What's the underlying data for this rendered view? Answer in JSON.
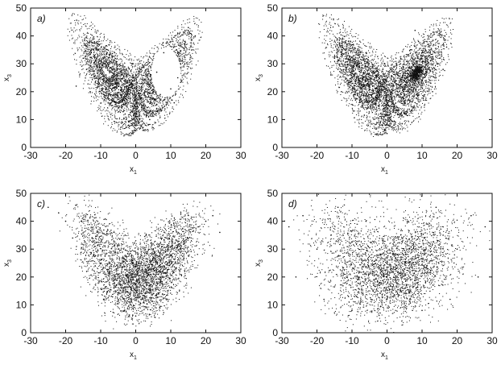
{
  "chart_data": [
    {
      "type": "scatter",
      "panel_label": "a)",
      "xlabel": "x",
      "xlabel_sub": "1",
      "ylabel": "x",
      "ylabel_sub": "3",
      "xlim": [
        -30,
        30
      ],
      "ylim": [
        0,
        50
      ],
      "xticks": [
        -30,
        -20,
        -10,
        0,
        10,
        20,
        30
      ],
      "yticks": [
        0,
        10,
        20,
        30,
        40,
        50
      ],
      "grid": false,
      "description": "Lorenz attractor, two wings; right wing has an open hole",
      "series": [
        {
          "x": [
            -12,
            -14,
            -10,
            -8,
            -6,
            -13,
            -9,
            -11,
            -5,
            -3,
            -2,
            0,
            2,
            4,
            6,
            8,
            10,
            12,
            14,
            16,
            10,
            8,
            6,
            12,
            14,
            15,
            9,
            -15,
            -16,
            -17,
            -4,
            -7,
            -1,
            1,
            3,
            5,
            7,
            11,
            13,
            17
          ],
          "y": [
            35,
            28,
            25,
            30,
            34,
            20,
            17,
            38,
            22,
            12,
            8,
            6,
            7,
            10,
            14,
            17,
            21,
            25,
            30,
            35,
            38,
            34,
            27,
            41,
            37,
            43,
            18,
            32,
            26,
            22,
            27,
            16,
            10,
            9,
            11,
            15,
            19,
            16,
            24,
            40
          ]
        }
      ]
    },
    {
      "type": "scatter",
      "panel_label": "b)",
      "xlabel": "x",
      "xlabel_sub": "1",
      "ylabel": "x",
      "ylabel_sub": "3",
      "xlim": [
        -30,
        30
      ],
      "ylim": [
        0,
        50
      ],
      "xticks": [
        -30,
        -20,
        -10,
        0,
        10,
        20,
        30
      ],
      "yticks": [
        0,
        10,
        20,
        30,
        40,
        50
      ],
      "grid": false,
      "description": "Lorenz attractor, symmetric two-wing butterfly",
      "series": [
        {
          "x": [
            -12,
            -14,
            -10,
            -8,
            -6,
            -13,
            -9,
            -11,
            -5,
            -3,
            -2,
            0,
            2,
            4,
            6,
            8,
            10,
            12,
            14,
            9,
            13,
            11,
            7,
            15,
            -15,
            -16,
            -4,
            -7,
            -1,
            1,
            3,
            5,
            16,
            17,
            8,
            10
          ],
          "y": [
            35,
            28,
            25,
            30,
            34,
            20,
            17,
            38,
            22,
            12,
            8,
            5,
            8,
            12,
            22,
            30,
            34,
            28,
            25,
            38,
            20,
            17,
            26,
            32,
            32,
            26,
            27,
            16,
            10,
            10,
            12,
            16,
            28,
            36,
            42,
            24
          ]
        }
      ]
    },
    {
      "type": "scatter",
      "panel_label": "c)",
      "xlabel": "x",
      "xlabel_sub": "1",
      "ylabel": "x",
      "ylabel_sub": "3",
      "xlim": [
        -30,
        30
      ],
      "ylim": [
        0,
        50
      ],
      "xticks": [
        -30,
        -20,
        -10,
        0,
        10,
        20,
        30
      ],
      "yticks": [
        0,
        10,
        20,
        30,
        40,
        50
      ],
      "grid": false,
      "description": "Noisy attractor, broad V-shaped cloud",
      "series": [
        {
          "x": [
            -20,
            -18,
            -15,
            -12,
            -10,
            -8,
            -6,
            -4,
            -2,
            0,
            2,
            4,
            6,
            8,
            10,
            12,
            15,
            18,
            20,
            22,
            -22,
            -25,
            -5,
            5,
            0,
            -1,
            1,
            -3,
            3,
            9,
            -9,
            14,
            -14,
            24
          ],
          "y": [
            40,
            34,
            30,
            28,
            25,
            22,
            20,
            16,
            12,
            6,
            12,
            17,
            21,
            24,
            28,
            31,
            34,
            38,
            40,
            42,
            43,
            45,
            30,
            30,
            20,
            25,
            15,
            35,
            35,
            12,
            12,
            22,
            22,
            36
          ]
        }
      ]
    },
    {
      "type": "scatter",
      "panel_label": "d)",
      "xlabel": "x",
      "xlabel_sub": "1",
      "ylabel": "x",
      "ylabel_sub": "3",
      "xlim": [
        -30,
        30
      ],
      "ylim": [
        0,
        50
      ],
      "xticks": [
        -30,
        -20,
        -10,
        0,
        10,
        20,
        30
      ],
      "yticks": [
        0,
        10,
        20,
        30,
        40,
        50
      ],
      "grid": false,
      "description": "Heavily noisy attractor, diffuse cloud",
      "series": [
        {
          "x": [
            -28,
            -24,
            -20,
            -16,
            -12,
            -8,
            -4,
            0,
            4,
            8,
            12,
            16,
            20,
            24,
            28,
            -26,
            26,
            -18,
            18,
            -10,
            10,
            -2,
            2,
            -6,
            6,
            0,
            -14,
            14
          ],
          "y": [
            38,
            42,
            30,
            35,
            25,
            20,
            15,
            12,
            15,
            20,
            25,
            35,
            30,
            42,
            38,
            20,
            20,
            12,
            12,
            8,
            8,
            28,
            28,
            40,
            40,
            20,
            45,
            45
          ]
        }
      ]
    }
  ]
}
